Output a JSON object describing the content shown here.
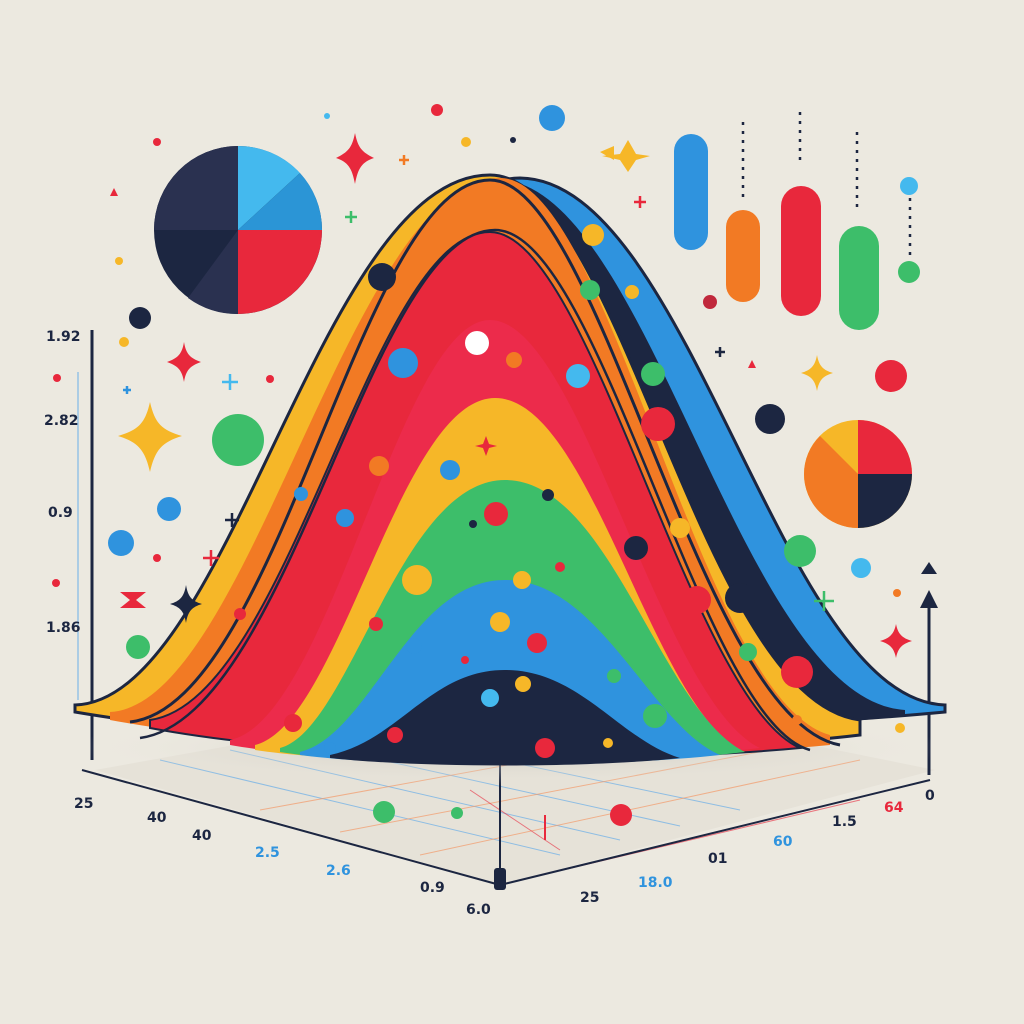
{
  "palette": {
    "background": "#ece9e0",
    "navy": "#1c2641",
    "blue": "#2f93de",
    "red": "#e8283c",
    "orange": "#f27a24",
    "yellow": "#f6b728",
    "green": "#3dbe6a",
    "sky": "#44b9ee"
  },
  "left_axis": {
    "labels": [
      "1.92",
      "2.82",
      "0.9",
      "1.86"
    ]
  },
  "floor_axes": {
    "left_labels": [
      "25",
      "40",
      "40",
      "2.5",
      "2.6",
      "0.9"
    ],
    "right_labels": [
      "6.0",
      "25",
      "18.0",
      "01",
      "60",
      "1.5",
      "64",
      "0"
    ]
  },
  "pie_charts": [
    {
      "name": "top-left-pie",
      "slices": [
        "navy",
        "sky",
        "red",
        "navy"
      ]
    },
    {
      "name": "right-pie",
      "slices": [
        "orange",
        "yellow",
        "red",
        "navy"
      ]
    }
  ],
  "pill_bars": [
    {
      "name": "pill-blue",
      "color": "blue"
    },
    {
      "name": "pill-orange",
      "color": "orange"
    },
    {
      "name": "pill-red",
      "color": "red"
    },
    {
      "name": "pill-green",
      "color": "green"
    }
  ],
  "icons": [
    "sparkle-star-icon",
    "plus-icon",
    "pie-chart-icon",
    "arrow-up-icon"
  ]
}
